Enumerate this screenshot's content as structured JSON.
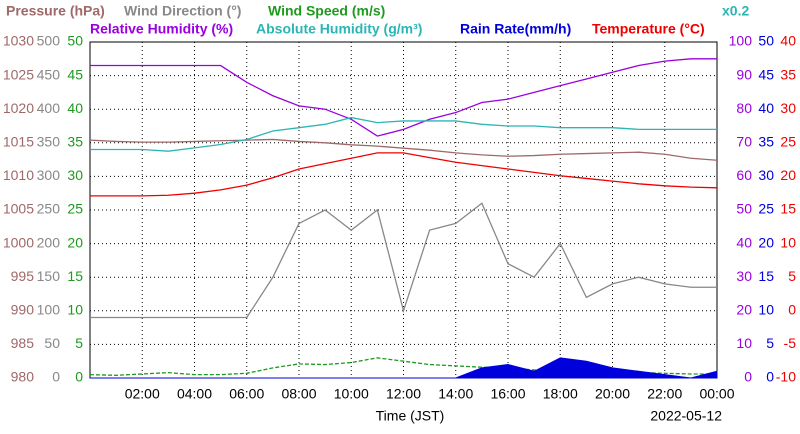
{
  "chart_data": {
    "type": "line",
    "xlabel": "Time (JST)",
    "date": "2022-05-12",
    "x": [
      0,
      1,
      2,
      3,
      4,
      5,
      6,
      7,
      8,
      9,
      10,
      11,
      12,
      13,
      14,
      15,
      16,
      17,
      18,
      19,
      20,
      21,
      22,
      23,
      24
    ],
    "xlim": [
      0,
      24
    ],
    "xticks": [
      {
        "value": 2,
        "label": "02:00"
      },
      {
        "value": 4,
        "label": "04:00"
      },
      {
        "value": 6,
        "label": "06:00"
      },
      {
        "value": 8,
        "label": "08:00"
      },
      {
        "value": 10,
        "label": "10:00"
      },
      {
        "value": 12,
        "label": "12:00"
      },
      {
        "value": 14,
        "label": "14:00"
      },
      {
        "value": 16,
        "label": "16:00"
      },
      {
        "value": 18,
        "label": "18:00"
      },
      {
        "value": 20,
        "label": "20:00"
      },
      {
        "value": 22,
        "label": "22:00"
      },
      {
        "value": 24,
        "label": "00:00"
      }
    ],
    "grid": true,
    "axes": [
      {
        "side": "left",
        "color": "#a06868",
        "ylim": [
          980,
          1030
        ],
        "yticks": [
          980,
          985,
          990,
          995,
          1000,
          1005,
          1010,
          1015,
          1020,
          1025,
          1030
        ]
      },
      {
        "side": "left",
        "color": "#888888",
        "ylim": [
          0,
          500
        ],
        "yticks": [
          0,
          50,
          100,
          150,
          200,
          250,
          300,
          350,
          400,
          450,
          500
        ]
      },
      {
        "side": "left",
        "color": "#1e9a1e",
        "ylim": [
          0,
          50
        ],
        "yticks": [
          0,
          5,
          10,
          15,
          20,
          25,
          30,
          35,
          40,
          45,
          50
        ]
      },
      {
        "side": "right",
        "color": "#9a00e0",
        "ylim": [
          0,
          100
        ],
        "yticks": [
          0,
          10,
          20,
          30,
          40,
          50,
          60,
          70,
          80,
          90,
          100
        ]
      },
      {
        "side": "right",
        "color": "#0000dd",
        "ylim": [
          0,
          50
        ],
        "yticks": [
          0,
          5,
          10,
          15,
          20,
          25,
          30,
          35,
          40,
          45,
          50
        ]
      },
      {
        "side": "right",
        "color": "#ee0000",
        "ylim": [
          -10,
          40
        ],
        "yticks": [
          -10,
          -5,
          0,
          5,
          10,
          15,
          20,
          25,
          30,
          35,
          40
        ]
      }
    ],
    "series": [
      {
        "name": "Pressure (hPa)",
        "color": "#a06868",
        "axis": 0,
        "values": [
          1015.4,
          1015.2,
          1015.1,
          1015.1,
          1015.2,
          1015.3,
          1015.4,
          1015.5,
          1015.2,
          1015,
          1014.7,
          1014.5,
          1014.2,
          1013.9,
          1013.5,
          1013.2,
          1013.0,
          1013.1,
          1013.3,
          1013.4,
          1013.5,
          1013.6,
          1013.3,
          1012.7,
          1012.4
        ]
      },
      {
        "name": "Wind Direction (°)",
        "color": "#888888",
        "axis": 1,
        "values": [
          90,
          90,
          90,
          90,
          90,
          90,
          90,
          150,
          230,
          250,
          220,
          250,
          100,
          220,
          230,
          260,
          170,
          150,
          200,
          120,
          140,
          150,
          140,
          135,
          135
        ]
      },
      {
        "name": "Wind Speed (m/s)",
        "color": "#1e9a1e",
        "axis": 2,
        "dashed": true,
        "values": [
          0.5,
          0.4,
          0.6,
          0.8,
          0.5,
          0.5,
          0.7,
          1.5,
          2.1,
          2,
          2.3,
          3,
          2.5,
          2,
          1.8,
          1.6,
          1.5,
          1.2,
          1.4,
          1.3,
          1.0,
          0.8,
          0.7,
          0.6,
          0.6
        ]
      },
      {
        "name": "Relative Humidity (%)",
        "color": "#9a00e0",
        "axis": 3,
        "values": [
          93,
          93,
          93,
          93,
          93,
          93,
          88,
          84,
          81,
          80,
          77,
          72,
          74,
          77,
          79,
          82,
          83,
          85,
          87,
          89,
          91,
          93,
          94.3,
          95,
          95
        ]
      },
      {
        "name": "Absolute Humidity (g/m³)",
        "color": "#2bb5b5",
        "axis": 3,
        "scale": {
          "value": 0.2,
          "label": "x0.2"
        },
        "values": [
          13.6,
          13.6,
          13.6,
          13.5,
          13.7,
          13.9,
          14.2,
          14.7,
          14.9,
          15.1,
          15.5,
          15.2,
          15.3,
          15.3,
          15.3,
          15.1,
          15.0,
          15.0,
          14.9,
          14.9,
          14.9,
          14.8,
          14.8,
          14.8,
          14.8
        ]
      },
      {
        "name": "Rain Rate(mm/h)",
        "color": "#0000dd",
        "axis": 4,
        "area": true,
        "values": [
          0,
          0,
          0,
          0,
          0,
          0,
          0,
          0,
          0,
          0,
          0,
          0,
          0,
          0,
          0,
          1.5,
          2,
          1,
          3,
          2.5,
          1.5,
          1,
          0.5,
          0,
          1
        ]
      },
      {
        "name": "Temperature (°C)",
        "color": "#ee0000",
        "axis": 5,
        "values": [
          17.1,
          17.1,
          17.1,
          17.2,
          17.5,
          18,
          18.7,
          19.8,
          21.1,
          21.9,
          22.7,
          23.5,
          23.5,
          22.8,
          22.1,
          21.6,
          21.1,
          20.6,
          20.1,
          19.7,
          19.3,
          18.9,
          18.6,
          18.4,
          18.3
        ]
      }
    ]
  }
}
